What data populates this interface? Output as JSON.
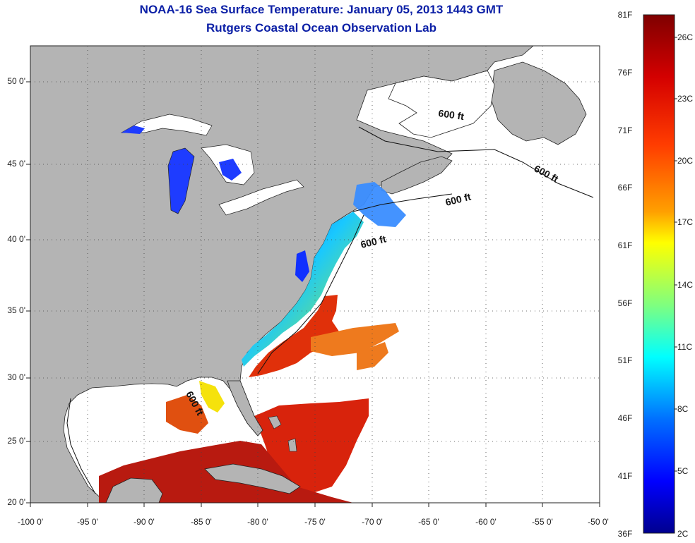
{
  "title": "NOAA-16 Sea Surface Temperature:  January 05, 2013 1443 GMT",
  "subtitle": "Rutgers Coastal Ocean Observation Lab",
  "map": {
    "lon_range": [
      -100,
      -50
    ],
    "lat_range": [
      20,
      52
    ],
    "grid": true,
    "x_ticks": [
      "-100 0'",
      "-95 0'",
      "-90 0'",
      "-85 0'",
      "-80 0'",
      "-75 0'",
      "-70 0'",
      "-65 0'",
      "-60 0'",
      "-55 0'",
      "-50 0'"
    ],
    "y_ticks": [
      "20 0'",
      "25 0'",
      "30 0'",
      "35 0'",
      "40 0'",
      "45 0'",
      "50 0'"
    ],
    "contour_label": "600 ft",
    "land_color": "#b4b4b4",
    "no_data_color": "#ffffff"
  },
  "colorbar": {
    "fahrenheit_labels": [
      "81F",
      "76F",
      "71F",
      "66F",
      "61F",
      "56F",
      "51F",
      "46F",
      "41F",
      "36F"
    ],
    "celsius_labels": [
      "26C",
      "23C",
      "20C",
      "17C",
      "14C",
      "11C",
      "8C",
      "5C",
      "2C"
    ],
    "colors": [
      "#7f0000",
      "#ff0000",
      "#ff7f00",
      "#ffff00",
      "#7fff7f",
      "#00ffff",
      "#007fff",
      "#0000ff",
      "#00008f"
    ]
  }
}
